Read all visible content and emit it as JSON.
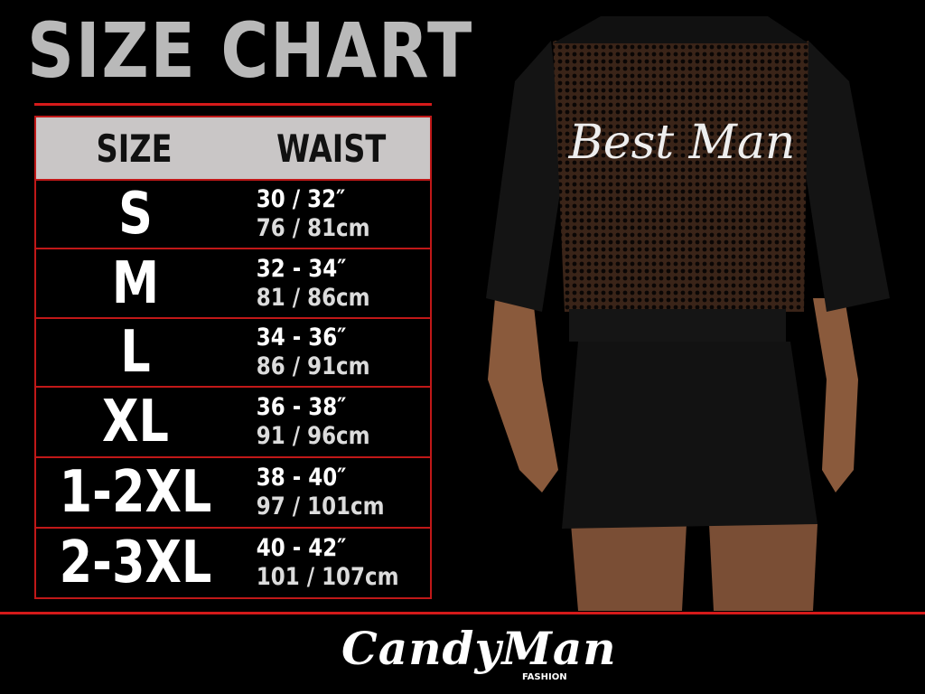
{
  "title": "SIZE CHART",
  "table": {
    "headers": [
      "SIZE",
      "WAIST"
    ],
    "rows": [
      {
        "size": "S",
        "in": "30 / 32″",
        "cm": "76 / 81cm"
      },
      {
        "size": "M",
        "in": "32 - 34″",
        "cm": "81 / 86cm"
      },
      {
        "size": "L",
        "in": "34 - 36″",
        "cm": "86 / 91cm"
      },
      {
        "size": "XL",
        "in": "36 - 38″",
        "cm": "91 / 96cm"
      },
      {
        "size": "1-2XL",
        "in": "38 - 40″",
        "cm": "97 / 101cm"
      },
      {
        "size": "2-3XL",
        "in": "40 - 42″",
        "cm": "101 / 107cm"
      }
    ]
  },
  "garment_print": "Best Man",
  "brand": {
    "name": "CandyMan",
    "sub": "FASHION"
  },
  "colors": {
    "accent": "#d51a1a",
    "header_bg": "#c9c6c6",
    "background": "#000000"
  }
}
